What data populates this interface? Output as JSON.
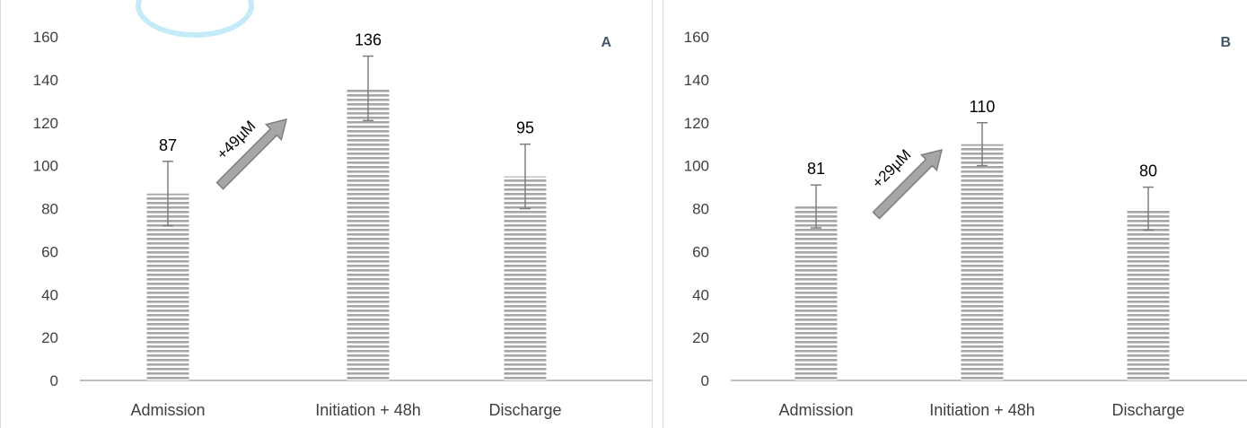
{
  "chart_data": [
    {
      "type": "bar",
      "panel_label": "A",
      "categories": [
        "Admission",
        "Initiation + 48h",
        "Discharge"
      ],
      "values": [
        87,
        136,
        95
      ],
      "value_labels": [
        "87",
        "136",
        "95"
      ],
      "error": [
        15,
        15,
        15
      ],
      "ylim": [
        0,
        160
      ],
      "yticks": [
        "0",
        "20",
        "40",
        "60",
        "80",
        "100",
        "120",
        "140",
        "160"
      ],
      "annotation": "+49µM",
      "grid": false,
      "bar_color": "#a6a6a6",
      "arrow_color": "#a6a6a6"
    },
    {
      "type": "bar",
      "panel_label": "B",
      "categories": [
        "Admission",
        "Initiation + 48h",
        "Discharge"
      ],
      "values": [
        81,
        110,
        80
      ],
      "value_labels": [
        "81",
        "110",
        "80"
      ],
      "error": [
        10,
        10,
        10
      ],
      "ylim": [
        0,
        160
      ],
      "yticks": [
        "0",
        "20",
        "40",
        "60",
        "80",
        "100",
        "120",
        "140",
        "160"
      ],
      "annotation": "+29µM",
      "grid": false,
      "bar_color": "#a6a6a6",
      "arrow_color": "#a6a6a6"
    }
  ]
}
